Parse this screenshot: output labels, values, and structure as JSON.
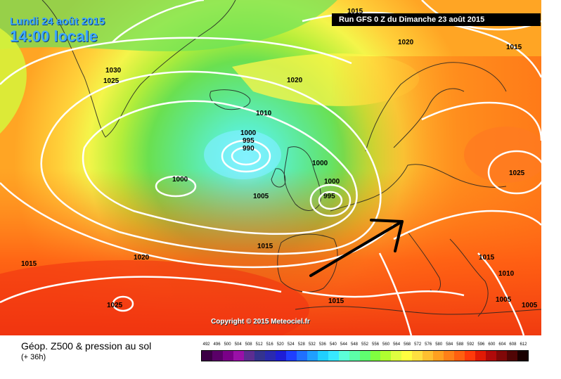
{
  "header": {
    "date": "Lundi 24 août 2015",
    "time": "14:00 locale",
    "run": "Run GFS 0 Z du Dimanche 23 août 2015"
  },
  "copyright": "Copyright © 2015 Meteociel.fr",
  "footer": {
    "title": "Géop. Z500 & pression au sol",
    "subtitle": "(+ 36h)"
  },
  "scale": {
    "labels": [
      "492",
      "496",
      "500",
      "504",
      "508",
      "512",
      "516",
      "520",
      "524",
      "528",
      "532",
      "536",
      "540",
      "544",
      "548",
      "552",
      "556",
      "560",
      "564",
      "568",
      "572",
      "576",
      "580",
      "584",
      "588",
      "592",
      "596",
      "600",
      "604",
      "608",
      "612"
    ],
    "colors": [
      "#3c0045",
      "#5a0068",
      "#7a0088",
      "#9a10a8",
      "#5c2d91",
      "#33338f",
      "#2a2aaf",
      "#1e1ed6",
      "#1f3fff",
      "#2070ff",
      "#209fff",
      "#20cfff",
      "#38e8ff",
      "#5cffd8",
      "#5cffa8",
      "#60ff70",
      "#80ff40",
      "#b0ff30",
      "#e0ff40",
      "#ffff40",
      "#ffe040",
      "#ffc030",
      "#ffa020",
      "#ff8018",
      "#ff6010",
      "#ff3a0a",
      "#e01a05",
      "#b00a0a",
      "#800808",
      "#500505",
      "#1a0000"
    ]
  },
  "pressure_labels": [
    "1015",
    "1020",
    "1015",
    "1030",
    "1025",
    "1020",
    "1010",
    "1000",
    "995",
    "990",
    "1000",
    "1000",
    "1000",
    "995",
    "1005",
    "1025",
    "1015",
    "1020",
    "1015",
    "1025",
    "1015",
    "1015",
    "1010",
    "1005",
    "1005"
  ]
}
